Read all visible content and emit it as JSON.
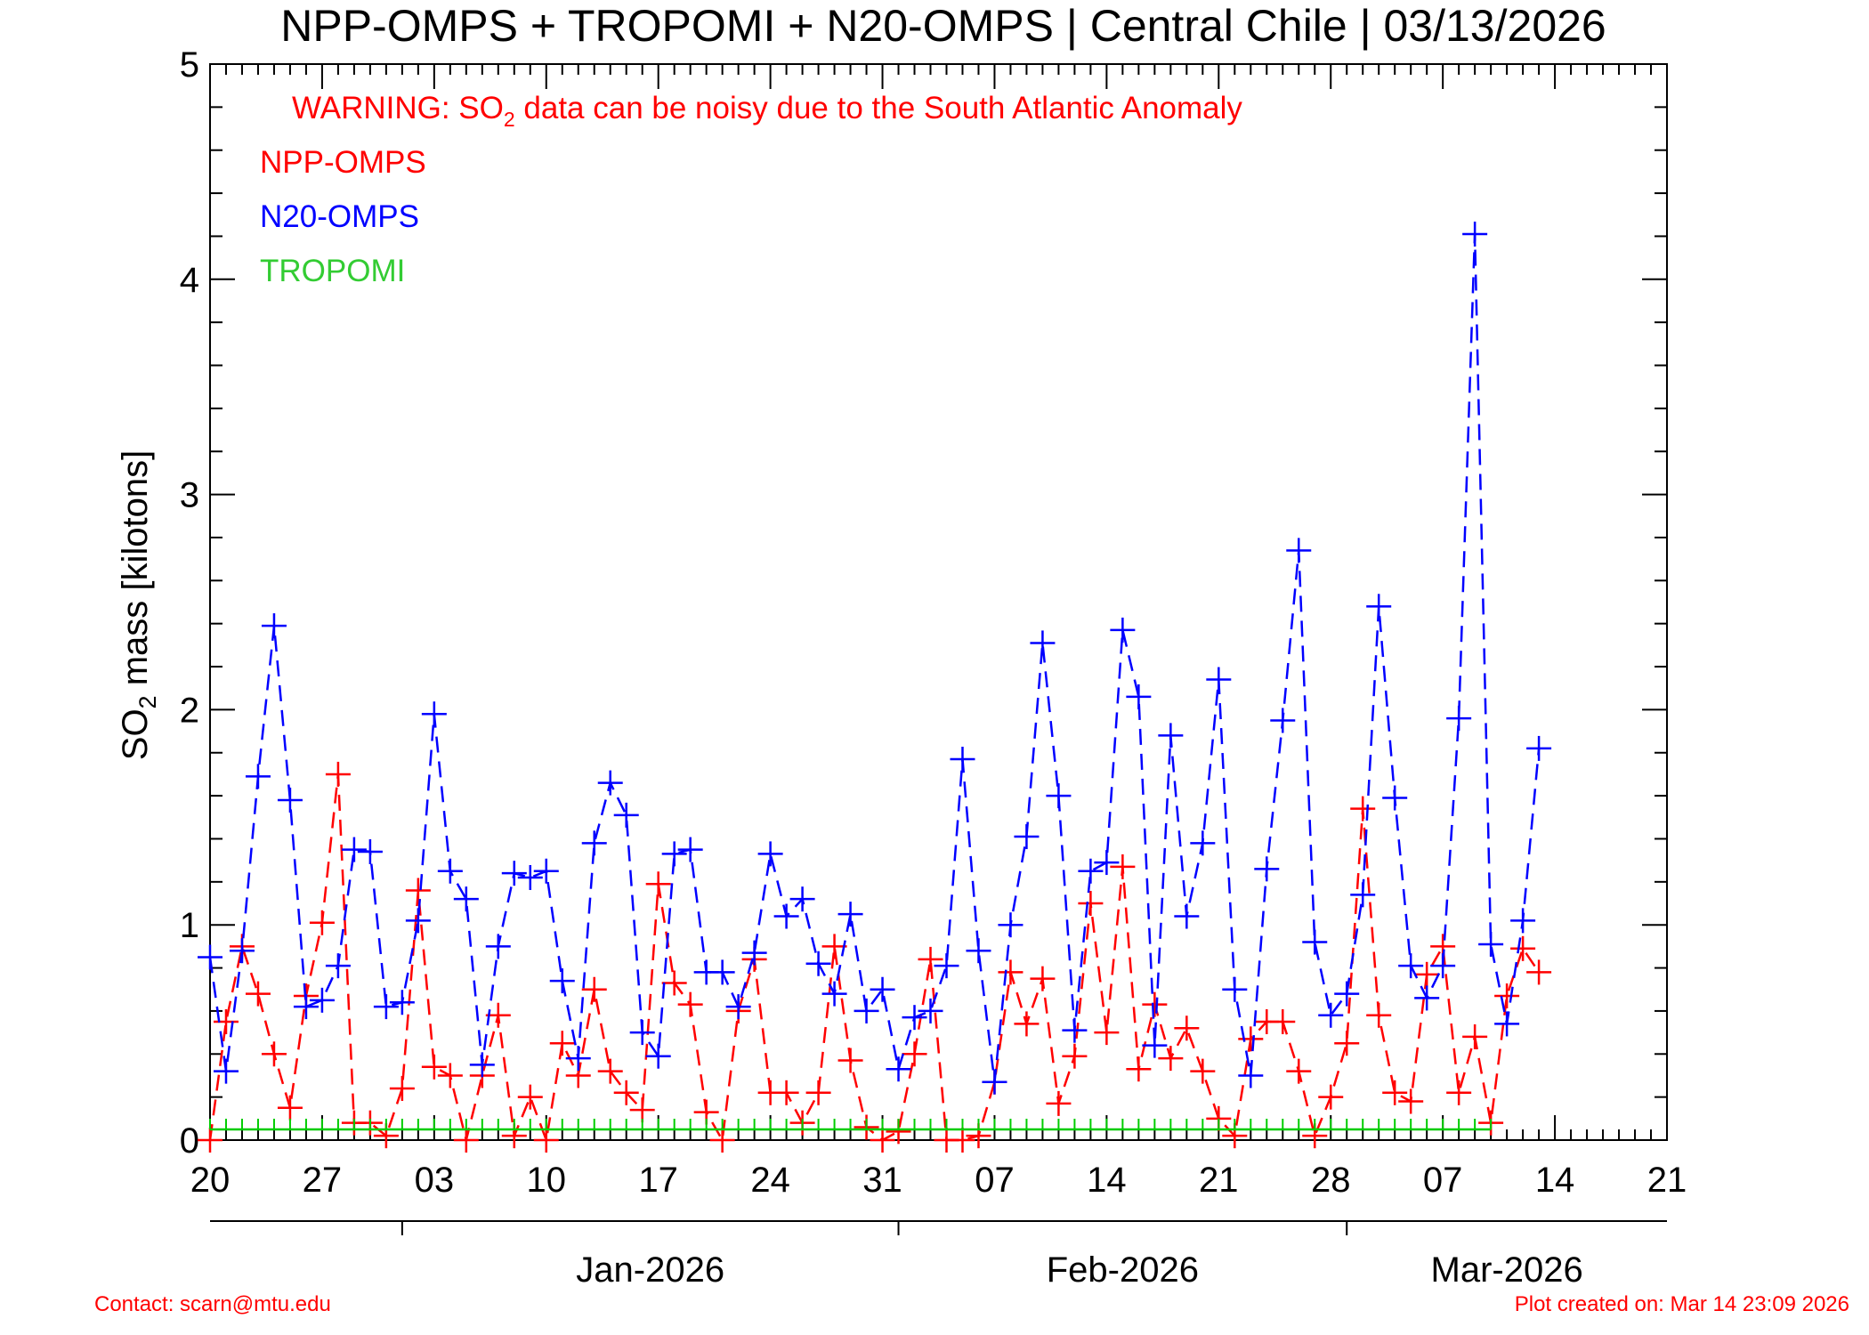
{
  "chart_data": {
    "type": "line",
    "title": "NPP-OMPS + TROPOMI + N20-OMPS | Central Chile | 03/13/2026",
    "warning": {
      "prefix": "WARNING: SO",
      "sub": "2",
      "suffix": " data can be noisy due to the South Atlantic Anomaly"
    },
    "ylabel": {
      "prefix": "SO",
      "sub": "2",
      "suffix": " mass [kilotons]"
    },
    "ylim": [
      0,
      5
    ],
    "yticks": [
      0,
      1,
      2,
      3,
      4,
      5
    ],
    "x_start": "2025-12-20",
    "x_end": "2026-03-21",
    "xtick_labels": [
      "20",
      "27",
      "03",
      "10",
      "17",
      "24",
      "31",
      "07",
      "14",
      "21",
      "28",
      "07",
      "14",
      "21"
    ],
    "month_labels": [
      "Jan-2026",
      "Feb-2026",
      "Mar-2026"
    ],
    "footer_left": "Contact: scarn@mtu.edu",
    "footer_right": "Plot created on: Mar 14 23:09 2026",
    "series": [
      {
        "name": "NPP-OMPS",
        "color": "#ff0000",
        "dates": [
          "2025-12-20",
          "2025-12-21",
          "2025-12-22",
          "2025-12-23",
          "2025-12-24",
          "2025-12-25",
          "2025-12-26",
          "2025-12-27",
          "2025-12-28",
          "2025-12-29",
          "2025-12-30",
          "2025-12-31",
          "2026-01-01",
          "2026-01-02",
          "2026-01-03",
          "2026-01-04",
          "2026-01-05",
          "2026-01-06",
          "2026-01-07",
          "2026-01-08",
          "2026-01-09",
          "2026-01-10",
          "2026-01-11",
          "2026-01-12",
          "2026-01-13",
          "2026-01-14",
          "2026-01-15",
          "2026-01-16",
          "2026-01-17",
          "2026-01-18",
          "2026-01-19",
          "2026-01-20",
          "2026-01-21",
          "2026-01-22",
          "2026-01-23",
          "2026-01-24",
          "2026-01-25",
          "2026-01-26",
          "2026-01-27",
          "2026-01-28",
          "2026-01-29",
          "2026-01-30",
          "2026-01-31",
          "2026-02-01",
          "2026-02-02",
          "2026-02-03",
          "2026-02-04",
          "2026-02-05",
          "2026-02-06",
          "2026-02-07",
          "2026-02-08",
          "2026-02-09",
          "2026-02-10",
          "2026-02-11",
          "2026-02-12",
          "2026-02-13",
          "2026-02-14",
          "2026-02-15",
          "2026-02-16",
          "2026-02-17",
          "2026-02-18",
          "2026-02-19",
          "2026-02-20",
          "2026-02-21",
          "2026-02-22",
          "2026-02-23",
          "2026-02-24",
          "2026-02-25",
          "2026-02-26",
          "2026-02-27",
          "2026-02-28",
          "2026-03-01",
          "2026-03-02",
          "2026-03-03",
          "2026-03-04",
          "2026-03-05",
          "2026-03-06",
          "2026-03-07",
          "2026-03-08",
          "2026-03-09",
          "2026-03-10",
          "2026-03-11",
          "2026-03-12",
          "2026-03-13"
        ],
        "values": [
          0.0,
          0.55,
          0.9,
          0.68,
          0.4,
          0.15,
          0.67,
          1.01,
          1.7,
          0.08,
          0.08,
          0.02,
          0.24,
          1.16,
          0.34,
          0.3,
          0.0,
          0.3,
          0.58,
          0.02,
          0.2,
          0.0,
          0.45,
          0.3,
          0.7,
          0.32,
          0.22,
          0.14,
          1.19,
          0.73,
          0.63,
          0.13,
          0.0,
          0.6,
          0.84,
          0.22,
          0.22,
          0.08,
          0.22,
          0.9,
          0.37,
          0.06,
          0.0,
          0.04,
          0.4,
          0.84,
          0.0,
          0.0,
          0.02,
          0.27,
          0.78,
          0.54,
          0.75,
          0.17,
          0.39,
          1.1,
          0.5,
          1.27,
          0.33,
          0.63,
          0.38,
          0.52,
          0.32,
          0.1,
          0.02,
          0.47,
          0.55,
          0.55,
          0.32,
          0.02,
          0.2,
          0.45,
          1.54,
          0.58,
          0.22,
          0.18,
          0.77,
          0.9,
          0.22,
          0.48,
          0.08,
          0.67,
          0.89,
          0.78
        ]
      },
      {
        "name": "N20-OMPS",
        "color": "#0000ff",
        "dates": [
          "2025-12-20",
          "2025-12-21",
          "2025-12-22",
          "2025-12-23",
          "2025-12-24",
          "2025-12-25",
          "2025-12-26",
          "2025-12-27",
          "2025-12-28",
          "2025-12-29",
          "2025-12-30",
          "2025-12-31",
          "2026-01-01",
          "2026-01-02",
          "2026-01-03",
          "2026-01-04",
          "2026-01-05",
          "2026-01-06",
          "2026-01-07",
          "2026-01-08",
          "2026-01-09",
          "2026-01-10",
          "2026-01-11",
          "2026-01-12",
          "2026-01-13",
          "2026-01-14",
          "2026-01-15",
          "2026-01-16",
          "2026-01-17",
          "2026-01-18",
          "2026-01-19",
          "2026-01-20",
          "2026-01-21",
          "2026-01-22",
          "2026-01-23",
          "2026-01-24",
          "2026-01-25",
          "2026-01-26",
          "2026-01-27",
          "2026-01-28",
          "2026-01-29",
          "2026-01-30",
          "2026-01-31",
          "2026-02-01",
          "2026-02-02",
          "2026-02-03",
          "2026-02-04",
          "2026-02-05",
          "2026-02-06",
          "2026-02-07",
          "2026-02-08",
          "2026-02-09",
          "2026-02-10",
          "2026-02-11",
          "2026-02-12",
          "2026-02-13",
          "2026-02-14",
          "2026-02-15",
          "2026-02-16",
          "2026-02-17",
          "2026-02-18",
          "2026-02-19",
          "2026-02-20",
          "2026-02-21",
          "2026-02-22",
          "2026-02-23",
          "2026-02-24",
          "2026-02-25",
          "2026-02-26",
          "2026-02-27",
          "2026-02-28",
          "2026-03-01",
          "2026-03-02",
          "2026-03-03",
          "2026-03-04",
          "2026-03-05",
          "2026-03-06",
          "2026-03-07",
          "2026-03-08",
          "2026-03-09",
          "2026-03-10",
          "2026-03-11",
          "2026-03-12",
          "2026-03-13"
        ],
        "values": [
          0.85,
          0.32,
          0.88,
          1.69,
          2.39,
          1.58,
          0.62,
          0.65,
          0.81,
          1.35,
          1.34,
          0.62,
          0.64,
          1.02,
          1.98,
          1.25,
          1.12,
          0.35,
          0.9,
          1.24,
          1.22,
          1.25,
          0.74,
          0.38,
          1.38,
          1.66,
          1.51,
          0.5,
          0.39,
          1.33,
          1.35,
          0.78,
          0.78,
          0.62,
          0.87,
          1.33,
          1.04,
          1.12,
          0.82,
          0.68,
          1.05,
          0.6,
          0.7,
          0.33,
          0.57,
          0.6,
          0.81,
          1.77,
          0.88,
          0.27,
          1.0,
          1.41,
          2.31,
          1.6,
          0.51,
          1.25,
          1.29,
          2.37,
          2.06,
          0.44,
          1.88,
          1.04,
          1.38,
          2.14,
          0.7,
          0.3,
          1.26,
          1.95,
          2.74,
          0.92,
          0.58,
          0.68,
          1.14,
          2.48,
          1.59,
          0.81,
          0.66,
          0.81,
          1.96,
          4.21,
          0.91,
          0.54,
          1.02,
          1.82
        ]
      },
      {
        "name": "TROPOMI",
        "color": "#00cc00",
        "dates": [
          "2025-12-20",
          "2026-03-10"
        ],
        "values": [
          0,
          0
        ]
      }
    ]
  }
}
